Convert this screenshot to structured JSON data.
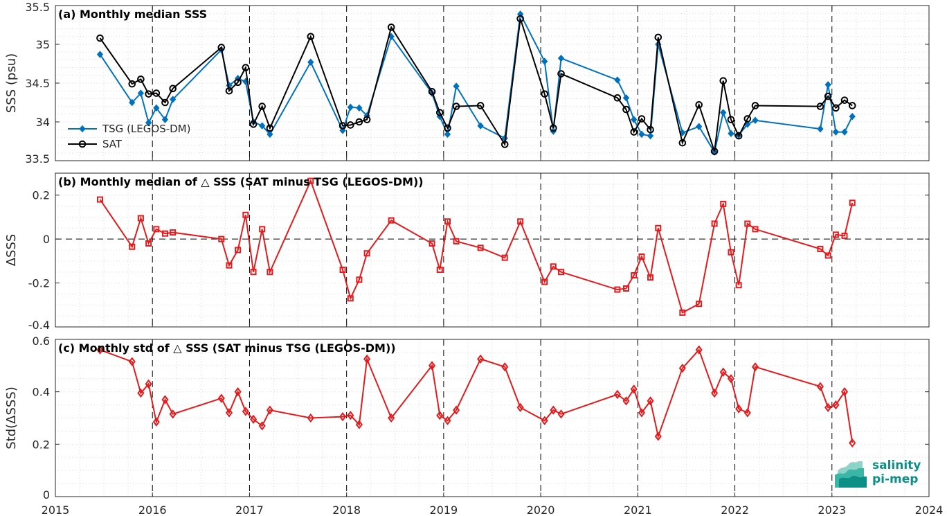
{
  "chart_data": [
    {
      "type": "line",
      "title": "(a) Monthly median SSS",
      "ylabel": "SSS (psu)",
      "xlim": [
        2015,
        2024
      ],
      "ylim": [
        33.5,
        35.5
      ],
      "xticks": [
        "2015",
        "2016",
        "2017",
        "2018",
        "2019",
        "2020",
        "2021",
        "2022",
        "2023",
        "2024"
      ],
      "yticks": [
        "33.5",
        "34",
        "34.5",
        "35",
        "35.5"
      ],
      "grid": true,
      "legend_position": "lower-left",
      "series": [
        {
          "name": "TSG (LEGOS-DM)",
          "color": "#0072bd",
          "marker": "diamond",
          "x": [
            2015.46,
            2015.79,
            2015.88,
            2015.96,
            2016.04,
            2016.13,
            2016.21,
            2016.71,
            2016.79,
            2016.88,
            2016.96,
            2017.04,
            2017.13,
            2017.21,
            2017.63,
            2017.96,
            2018.04,
            2018.13,
            2018.21,
            2018.46,
            2018.88,
            2018.96,
            2019.04,
            2019.13,
            2019.38,
            2019.63,
            2019.79,
            2020.04,
            2020.13,
            2020.21,
            2020.79,
            2020.88,
            2020.96,
            2021.04,
            2021.13,
            2021.21,
            2021.46,
            2021.63,
            2021.79,
            2021.88,
            2021.96,
            2022.04,
            2022.13,
            2022.21,
            2022.88,
            2022.96,
            2023.04,
            2023.13,
            2023.21
          ],
          "y": [
            34.87,
            34.25,
            34.37,
            33.99,
            34.18,
            34.03,
            34.29,
            34.93,
            34.47,
            34.56,
            34.52,
            34.0,
            33.95,
            33.84,
            34.77,
            33.89,
            34.19,
            34.18,
            34.08,
            35.1,
            34.37,
            34.07,
            33.84,
            34.46,
            33.95,
            33.79,
            35.39,
            34.78,
            33.88,
            34.82,
            34.54,
            34.31,
            34.03,
            33.84,
            33.82,
            35.0,
            33.86,
            33.94,
            33.61,
            34.12,
            33.85,
            33.83,
            33.97,
            34.02,
            33.91,
            34.48,
            33.87,
            33.87,
            34.07
          ]
        },
        {
          "name": "SAT",
          "color": "#000000",
          "marker": "circle",
          "x": [
            2015.46,
            2015.79,
            2015.88,
            2015.96,
            2016.04,
            2016.13,
            2016.21,
            2016.71,
            2016.79,
            2016.88,
            2016.96,
            2017.04,
            2017.13,
            2017.21,
            2017.63,
            2017.96,
            2018.04,
            2018.13,
            2018.21,
            2018.46,
            2018.88,
            2018.96,
            2019.04,
            2019.13,
            2019.38,
            2019.63,
            2019.79,
            2020.04,
            2020.13,
            2020.21,
            2020.79,
            2020.88,
            2020.96,
            2021.04,
            2021.13,
            2021.21,
            2021.46,
            2021.63,
            2021.79,
            2021.88,
            2021.96,
            2022.04,
            2022.13,
            2022.21,
            2022.88,
            2022.96,
            2023.04,
            2023.13,
            2023.21
          ],
          "y": [
            35.08,
            34.49,
            34.55,
            34.36,
            34.37,
            34.25,
            34.43,
            34.96,
            34.4,
            34.51,
            34.7,
            33.97,
            34.2,
            33.92,
            35.1,
            33.95,
            33.96,
            34.0,
            34.03,
            35.22,
            34.39,
            34.12,
            33.92,
            34.2,
            34.21,
            33.71,
            35.33,
            34.36,
            33.92,
            34.62,
            34.31,
            34.16,
            33.87,
            34.04,
            33.9,
            35.09,
            33.73,
            34.22,
            33.62,
            34.53,
            34.03,
            33.82,
            34.04,
            34.21,
            34.2,
            34.33,
            34.18,
            34.28,
            34.21
          ]
        }
      ]
    },
    {
      "type": "line",
      "title": "(b) Monthly median of △ SSS (SAT minus TSG (LEGOS-DM))",
      "ylabel": "ΔSSS",
      "xlim": [
        2015,
        2024
      ],
      "ylim": [
        -0.4,
        0.3
      ],
      "xticks": [
        "2015",
        "2016",
        "2017",
        "2018",
        "2019",
        "2020",
        "2021",
        "2022",
        "2023",
        "2024"
      ],
      "yticks": [
        "-0.4",
        "-0.2",
        "0",
        "0.2"
      ],
      "grid": true,
      "zero_line": true,
      "series": [
        {
          "color": "#e41a1c",
          "marker": "square",
          "x": [
            2015.46,
            2015.79,
            2015.88,
            2015.96,
            2016.04,
            2016.13,
            2016.21,
            2016.71,
            2016.79,
            2016.88,
            2016.96,
            2017.04,
            2017.13,
            2017.21,
            2017.63,
            2017.96,
            2018.04,
            2018.13,
            2018.21,
            2018.46,
            2018.88,
            2018.96,
            2019.04,
            2019.13,
            2019.38,
            2019.63,
            2019.79,
            2020.04,
            2020.13,
            2020.21,
            2020.79,
            2020.88,
            2020.96,
            2021.04,
            2021.13,
            2021.21,
            2021.46,
            2021.63,
            2021.79,
            2021.88,
            2021.96,
            2022.04,
            2022.13,
            2022.21,
            2022.88,
            2022.96,
            2023.04,
            2023.13,
            2023.21
          ],
          "y": [
            0.18,
            -0.035,
            0.095,
            -0.02,
            0.045,
            0.025,
            0.03,
            0.0,
            -0.12,
            -0.05,
            0.11,
            -0.15,
            0.045,
            -0.15,
            0.265,
            -0.14,
            -0.27,
            -0.185,
            -0.065,
            0.085,
            -0.02,
            -0.14,
            0.08,
            -0.01,
            -0.04,
            -0.085,
            0.08,
            -0.195,
            -0.125,
            -0.15,
            -0.23,
            -0.225,
            -0.165,
            -0.08,
            -0.175,
            0.05,
            -0.335,
            -0.295,
            0.07,
            0.16,
            -0.06,
            -0.21,
            0.07,
            0.045,
            -0.045,
            -0.075,
            0.02,
            0.015,
            0.165
          ]
        }
      ]
    },
    {
      "type": "line",
      "title": "(c) Monthly std of △ SSS (SAT minus TSG (LEGOS-DM))",
      "ylabel": "Std(ΔSSS)",
      "xlim": [
        2015,
        2024
      ],
      "ylim": [
        0,
        0.6
      ],
      "xticks": [
        "2015",
        "2016",
        "2017",
        "2018",
        "2019",
        "2020",
        "2021",
        "2022",
        "2023",
        "2024"
      ],
      "yticks": [
        "0",
        "0.2",
        "0.4",
        "0.6"
      ],
      "grid": true,
      "series": [
        {
          "color": "#e41a1c",
          "marker": "diamond-open",
          "x": [
            2015.46,
            2015.79,
            2015.88,
            2015.96,
            2016.04,
            2016.13,
            2016.21,
            2016.71,
            2016.79,
            2016.88,
            2016.96,
            2017.04,
            2017.13,
            2017.21,
            2017.63,
            2017.96,
            2018.04,
            2018.13,
            2018.21,
            2018.46,
            2018.88,
            2018.96,
            2019.04,
            2019.13,
            2019.38,
            2019.63,
            2019.79,
            2020.04,
            2020.13,
            2020.21,
            2020.79,
            2020.88,
            2020.96,
            2021.04,
            2021.13,
            2021.21,
            2021.46,
            2021.63,
            2021.79,
            2021.88,
            2021.96,
            2022.04,
            2022.13,
            2022.21,
            2022.88,
            2022.96,
            2023.04,
            2023.13,
            2023.21
          ],
          "y": [
            0.56,
            0.515,
            0.395,
            0.43,
            0.285,
            0.37,
            0.315,
            0.375,
            0.32,
            0.4,
            0.325,
            0.295,
            0.27,
            0.33,
            0.3,
            0.305,
            0.31,
            0.275,
            0.525,
            0.3,
            0.5,
            0.31,
            0.29,
            0.33,
            0.525,
            0.495,
            0.34,
            0.29,
            0.33,
            0.315,
            0.39,
            0.365,
            0.41,
            0.32,
            0.365,
            0.23,
            0.49,
            0.56,
            0.395,
            0.475,
            0.45,
            0.335,
            0.32,
            0.495,
            0.42,
            0.34,
            0.35,
            0.4,
            0.205
          ]
        }
      ]
    }
  ],
  "logo": {
    "line1": "salinity",
    "line2": "pi-mep",
    "color": "#0b8f86"
  }
}
